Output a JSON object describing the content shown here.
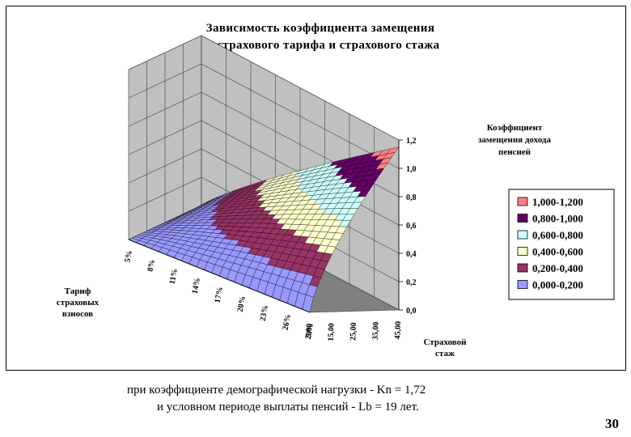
{
  "chart_data": {
    "type": "surface3d",
    "title_lines": [
      "Зависимость коэффициента замещения",
      "от страхового тарифа и страхового стажа"
    ],
    "x_axis": {
      "label_lines": [
        "Тариф",
        "страховых",
        "взносов"
      ],
      "categories": [
        "5%",
        "8%",
        "11%",
        "14%",
        "17%",
        "20%",
        "23%",
        "26%",
        "29%"
      ]
    },
    "y_axis": {
      "label_lines": [
        "Страховой",
        "стаж"
      ],
      "categories": [
        "5,00",
        "15,00",
        "25,00",
        "35,00",
        "45,00"
      ]
    },
    "z_axis": {
      "label_lines": [
        "Коэффициент",
        "замещения дохода",
        "пенсией"
      ],
      "ticks": [
        "0,0",
        "0,2",
        "0,4",
        "0,6",
        "0,8",
        "1,0",
        "1,2"
      ],
      "range": [
        0,
        1.2
      ]
    },
    "legend": [
      {
        "label": "1,000-1,200",
        "color": "#ff8080"
      },
      {
        "label": "0,800-1,000",
        "color": "#660066"
      },
      {
        "label": "0,600-0,800",
        "color": "#ccffff"
      },
      {
        "label": "0,400-0,600",
        "color": "#ffffcc"
      },
      {
        "label": "0,200-0,400",
        "color": "#993366"
      },
      {
        "label": "0,000-0,200",
        "color": "#9999ff"
      }
    ],
    "bands": [
      0,
      0.2,
      0.4,
      0.6,
      0.8,
      1.0,
      1.2
    ],
    "max_value": 1.15,
    "walls_color": "#c0c0c0",
    "floor_color": "#808080",
    "grid": true
  },
  "caption": {
    "line1": "при  коэффициенте демографической нагрузки - Kn = 1,72",
    "line2": "и условном периоде выплаты пенсий - Lb = 19 лет."
  },
  "page_number": "30"
}
